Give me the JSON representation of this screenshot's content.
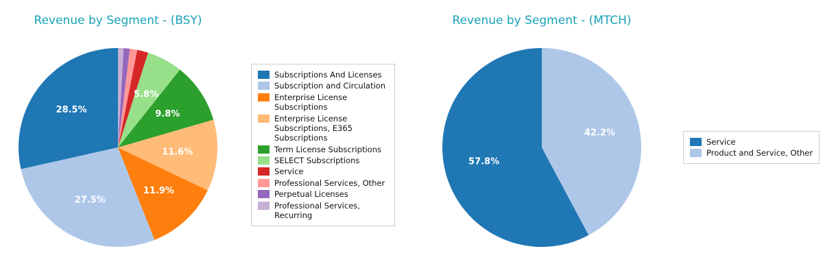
{
  "styles": {
    "title_color": "#17a2b8",
    "pct_label_color": "#ffffff",
    "legend_border_color": "#cccccc"
  },
  "chart_data": [
    {
      "type": "pie",
      "title": "Revenue by Segment - (BSY)",
      "start_angle": 90,
      "counterclockwise": true,
      "legend_position": "right",
      "slices": [
        {
          "label": "Subscriptions And Licenses",
          "value": 28.5,
          "color": "#1f77b4",
          "pct_label": "28.5%"
        },
        {
          "label": "Subscription and Circulation",
          "value": 27.5,
          "color": "#aec7e8",
          "pct_label": "27.5%"
        },
        {
          "label": "Enterprise License Subscriptions",
          "value": 11.9,
          "color": "#ff7f0e",
          "pct_label": "11.9%"
        },
        {
          "label": "Enterprise License Subscriptions, E365 Subscriptions",
          "value": 11.6,
          "color": "#ffbb78",
          "pct_label": "11.6%"
        },
        {
          "label": "Term License Subscriptions",
          "value": 9.8,
          "color": "#2ca02c",
          "pct_label": "9.8%"
        },
        {
          "label": "SELECT Subscriptions",
          "value": 5.8,
          "color": "#98df8a",
          "pct_label": "5.8%"
        },
        {
          "label": "Service",
          "value": 1.8,
          "color": "#d62728",
          "pct_label": ""
        },
        {
          "label": "Professional Services, Other",
          "value": 1.2,
          "color": "#ff9896",
          "pct_label": ""
        },
        {
          "label": "Perpetual Licenses",
          "value": 1.0,
          "color": "#9467bd",
          "pct_label": ""
        },
        {
          "label": "Professional Services, Recurring",
          "value": 0.9,
          "color": "#c5b0d5",
          "pct_label": ""
        }
      ]
    },
    {
      "type": "pie",
      "title": "Revenue by Segment - (MTCH)",
      "start_angle": 90,
      "counterclockwise": true,
      "legend_position": "right",
      "slices": [
        {
          "label": "Service",
          "value": 57.8,
          "color": "#1f77b4",
          "pct_label": "57.8%"
        },
        {
          "label": "Product and Service, Other",
          "value": 42.2,
          "color": "#aec7e8",
          "pct_label": "42.2%"
        }
      ]
    }
  ]
}
